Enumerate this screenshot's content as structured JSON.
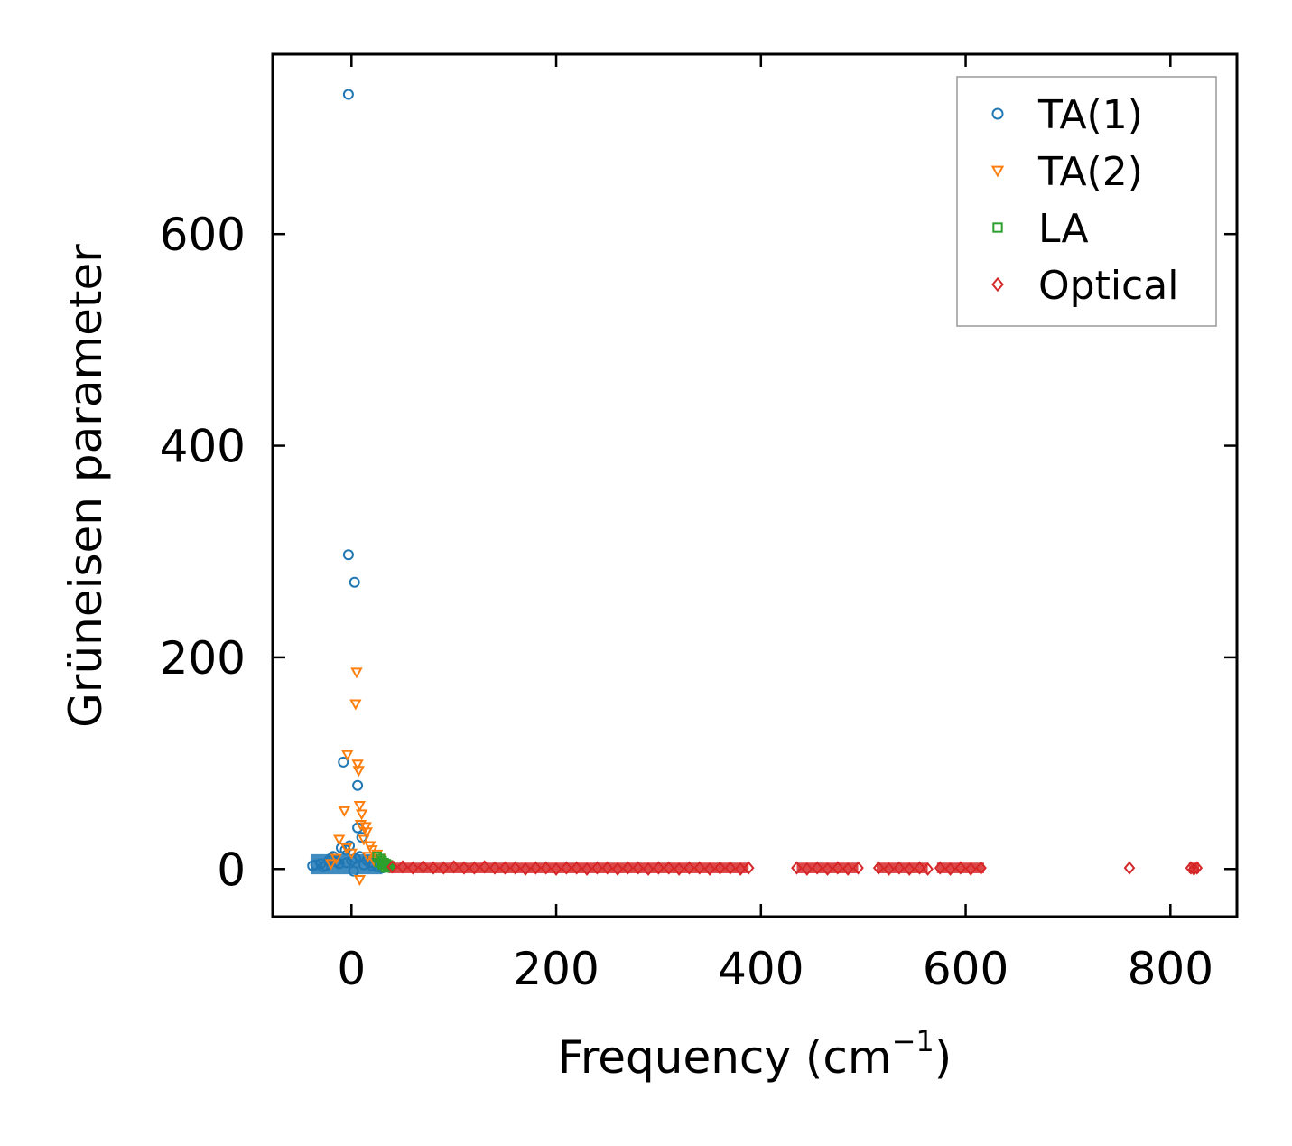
{
  "chart_data": {
    "type": "scatter",
    "title": "",
    "xlabel": "Frequency (cm",
    "xlabel_superscript": "−1",
    "xlabel_suffix": ")",
    "ylabel": "Grüneisen parameter",
    "xlim": [
      -77,
      865
    ],
    "ylim": [
      -45,
      770
    ],
    "xticks": [
      0,
      200,
      400,
      600,
      800
    ],
    "yticks": [
      0,
      200,
      400,
      600
    ],
    "legend_position": "top-right",
    "series": [
      {
        "name": "TA(1)",
        "marker": "circle",
        "color": "#1f77b4",
        "points": [
          [
            -3,
            732
          ],
          [
            -3,
            297
          ],
          [
            3,
            271
          ],
          [
            -8,
            101
          ],
          [
            6,
            79
          ],
          [
            6,
            39
          ],
          [
            10,
            30
          ],
          [
            -10,
            20
          ],
          [
            -2,
            22
          ],
          [
            -6,
            18
          ],
          [
            8,
            12
          ],
          [
            15,
            8
          ],
          [
            -20,
            10
          ],
          [
            -15,
            7
          ],
          [
            -30,
            5
          ],
          [
            -25,
            3
          ],
          [
            -35,
            4
          ],
          [
            12,
            4
          ],
          [
            20,
            3
          ],
          [
            -5,
            6
          ],
          [
            0,
            8
          ],
          [
            4,
            10
          ],
          [
            -12,
            5
          ],
          [
            18,
            6
          ],
          [
            -38,
            3
          ],
          [
            25,
            2
          ],
          [
            22,
            5
          ],
          [
            -18,
            12
          ],
          [
            -22,
            8
          ],
          [
            -28,
            2
          ],
          [
            30,
            1
          ],
          [
            2,
            -2
          ]
        ]
      },
      {
        "name": "TA(2)",
        "marker": "triangle-down",
        "color": "#ff7f0e",
        "points": [
          [
            5,
            186
          ],
          [
            4,
            156
          ],
          [
            -4,
            108
          ],
          [
            6,
            99
          ],
          [
            7,
            93
          ],
          [
            -7,
            55
          ],
          [
            8,
            60
          ],
          [
            10,
            52
          ],
          [
            15,
            35
          ],
          [
            12,
            28
          ],
          [
            -12,
            28
          ],
          [
            18,
            22
          ],
          [
            20,
            18
          ],
          [
            25,
            14
          ],
          [
            9,
            42
          ],
          [
            14,
            40
          ],
          [
            -15,
            10
          ],
          [
            22,
            8
          ],
          [
            30,
            5
          ],
          [
            8,
            -10
          ],
          [
            0,
            15
          ],
          [
            28,
            10
          ],
          [
            -20,
            5
          ],
          [
            32,
            3
          ],
          [
            16,
            12
          ],
          [
            -5,
            20
          ]
        ]
      },
      {
        "name": "LA",
        "marker": "square",
        "color": "#2ca02c",
        "points": [
          [
            25,
            12
          ],
          [
            28,
            10
          ],
          [
            30,
            8
          ],
          [
            32,
            6
          ],
          [
            34,
            5
          ],
          [
            36,
            4
          ],
          [
            38,
            3
          ],
          [
            35,
            2
          ],
          [
            30,
            4
          ],
          [
            27,
            6
          ],
          [
            33,
            1
          ],
          [
            37,
            2
          ]
        ]
      },
      {
        "name": "Optical",
        "marker": "diamond",
        "color": "#d62728",
        "points": [
          [
            40,
            2
          ],
          [
            50,
            2
          ],
          [
            60,
            1
          ],
          [
            70,
            2
          ],
          [
            80,
            1
          ],
          [
            90,
            1
          ],
          [
            100,
            2
          ],
          [
            110,
            1
          ],
          [
            120,
            1
          ],
          [
            130,
            2
          ],
          [
            140,
            1
          ],
          [
            150,
            1
          ],
          [
            160,
            1
          ],
          [
            170,
            0
          ],
          [
            180,
            1
          ],
          [
            190,
            1
          ],
          [
            200,
            0
          ],
          [
            210,
            1
          ],
          [
            220,
            1
          ],
          [
            230,
            0
          ],
          [
            240,
            1
          ],
          [
            250,
            1
          ],
          [
            260,
            0
          ],
          [
            270,
            1
          ],
          [
            280,
            1
          ],
          [
            290,
            0
          ],
          [
            300,
            1
          ],
          [
            310,
            1
          ],
          [
            320,
            0
          ],
          [
            330,
            1
          ],
          [
            340,
            1
          ],
          [
            350,
            0
          ],
          [
            360,
            1
          ],
          [
            370,
            1
          ],
          [
            380,
            0
          ],
          [
            388,
            1
          ],
          [
            435,
            1
          ],
          [
            445,
            0
          ],
          [
            455,
            1
          ],
          [
            465,
            0
          ],
          [
            475,
            1
          ],
          [
            485,
            0
          ],
          [
            495,
            1
          ],
          [
            515,
            1
          ],
          [
            525,
            0
          ],
          [
            535,
            1
          ],
          [
            545,
            0
          ],
          [
            555,
            1
          ],
          [
            563,
            0
          ],
          [
            575,
            1
          ],
          [
            585,
            0
          ],
          [
            595,
            1
          ],
          [
            605,
            0
          ],
          [
            615,
            1
          ],
          [
            760,
            1
          ],
          [
            820,
            1
          ],
          [
            823,
            0
          ],
          [
            826,
            1
          ]
        ]
      }
    ]
  }
}
